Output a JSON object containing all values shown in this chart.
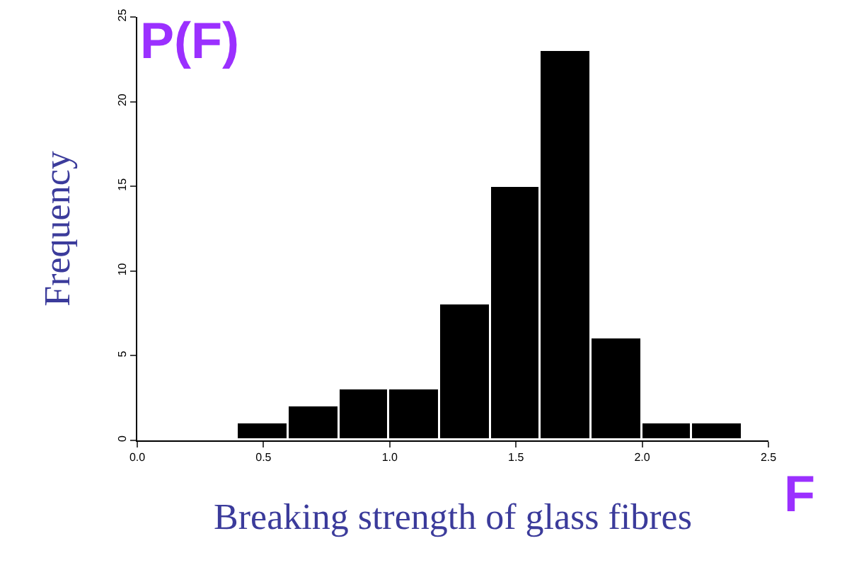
{
  "chart_data": {
    "type": "histogram",
    "xlabel": "Breaking strength of glass fibres",
    "ylabel": "Frequency",
    "bins": [
      0.4,
      0.6,
      0.8,
      1.0,
      1.2,
      1.4,
      1.6,
      1.8,
      2.0,
      2.2,
      2.4
    ],
    "values": [
      1,
      2,
      3,
      3,
      8,
      15,
      23,
      6,
      1,
      1
    ],
    "color": "#000000",
    "xlim": [
      0,
      2.5
    ],
    "xticks": [
      {
        "value": 0,
        "label": "0.0"
      },
      0.5,
      {
        "value": 1,
        "label": "1.0"
      },
      1.5,
      {
        "value": 2,
        "label": "2.0"
      },
      2.5
    ],
    "ylim": [
      0,
      25
    ],
    "yticks": [
      0,
      5,
      10,
      15,
      20,
      25
    ],
    "annotations": [
      "P(F)",
      "F"
    ]
  }
}
